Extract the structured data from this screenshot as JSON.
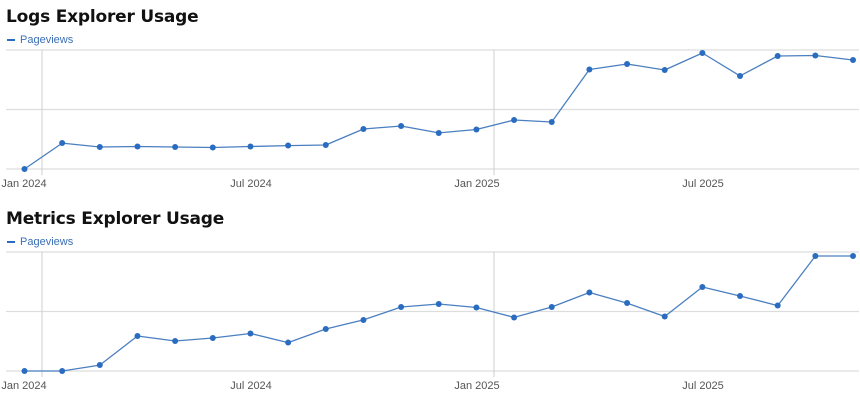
{
  "charts": [
    {
      "title": "Logs Explorer Usage",
      "legend": "Pageviews",
      "x_labels": [
        "Jan 2024",
        "Jul 2024",
        "Jan 2025",
        "Jul 2025"
      ]
    },
    {
      "title": "Metrics Explorer Usage",
      "legend": "Pageviews",
      "x_labels": [
        "Jan 2024",
        "Jul 2024",
        "Jan 2025",
        "Jul 2025"
      ]
    }
  ],
  "colors": {
    "line": "#4a7fc0",
    "point": "#2a6cc0",
    "grid": "#dddddd",
    "legend_text": "#3a6fb5"
  },
  "chart_data": [
    {
      "type": "line",
      "title": "Logs Explorer Usage",
      "xlabel": "",
      "ylabel": "",
      "legend_position": "top-left",
      "grid": true,
      "y_units": "relative (% of top gridline; no y-axis ticks shown)",
      "ylim": [
        0,
        100
      ],
      "x_tick_labels": [
        "Jan 2024",
        "Jul 2024",
        "Jan 2025",
        "Jul 2025"
      ],
      "categories": [
        "Dec 2023",
        "Jan 2024",
        "Feb 2024",
        "Mar 2024",
        "Apr 2024",
        "May 2024",
        "Jun 2024",
        "Jul 2024",
        "Aug 2024",
        "Sep 2024",
        "Oct 2024",
        "Nov 2024",
        "Dec 2024",
        "Jan 2025",
        "Feb 2025",
        "Mar 2025",
        "Apr 2025",
        "May 2025",
        "Jun 2025",
        "Jul 2025",
        "Aug 2025",
        "Sep 2025",
        "Oct 2025"
      ],
      "series": [
        {
          "name": "Pageviews",
          "values": [
            0,
            21.8,
            18.5,
            18.9,
            18.5,
            18.1,
            18.9,
            19.7,
            20.2,
            33.6,
            36.1,
            30.3,
            33.2,
            41.2,
            39.5,
            83.6,
            88.2,
            83.2,
            97.5,
            78.2,
            95.0,
            95.4,
            91.6
          ]
        }
      ]
    },
    {
      "type": "line",
      "title": "Metrics Explorer Usage",
      "xlabel": "",
      "ylabel": "",
      "legend_position": "top-left",
      "grid": true,
      "y_units": "relative (% of top gridline; no y-axis ticks shown)",
      "ylim": [
        0,
        100
      ],
      "x_tick_labels": [
        "Jan 2024",
        "Jul 2024",
        "Jan 2025",
        "Jul 2025"
      ],
      "categories": [
        "Dec 2023",
        "Jan 2024",
        "Feb 2024",
        "Mar 2024",
        "Apr 2024",
        "May 2024",
        "Jun 2024",
        "Jul 2024",
        "Aug 2024",
        "Sep 2024",
        "Oct 2024",
        "Nov 2024",
        "Dec 2024",
        "Jan 2025",
        "Feb 2025",
        "Mar 2025",
        "Apr 2025",
        "May 2025",
        "Jun 2025",
        "Jul 2025",
        "Aug 2025",
        "Sep 2025",
        "Oct 2025"
      ],
      "series": [
        {
          "name": "Pageviews",
          "values": [
            0,
            0,
            5.0,
            29.4,
            25.2,
            27.7,
            31.5,
            23.9,
            35.3,
            42.9,
            53.8,
            56.3,
            53.4,
            45.0,
            53.8,
            66.0,
            57.1,
            45.8,
            70.6,
            63.0,
            55.0,
            96.6,
            96.6
          ]
        }
      ]
    }
  ]
}
